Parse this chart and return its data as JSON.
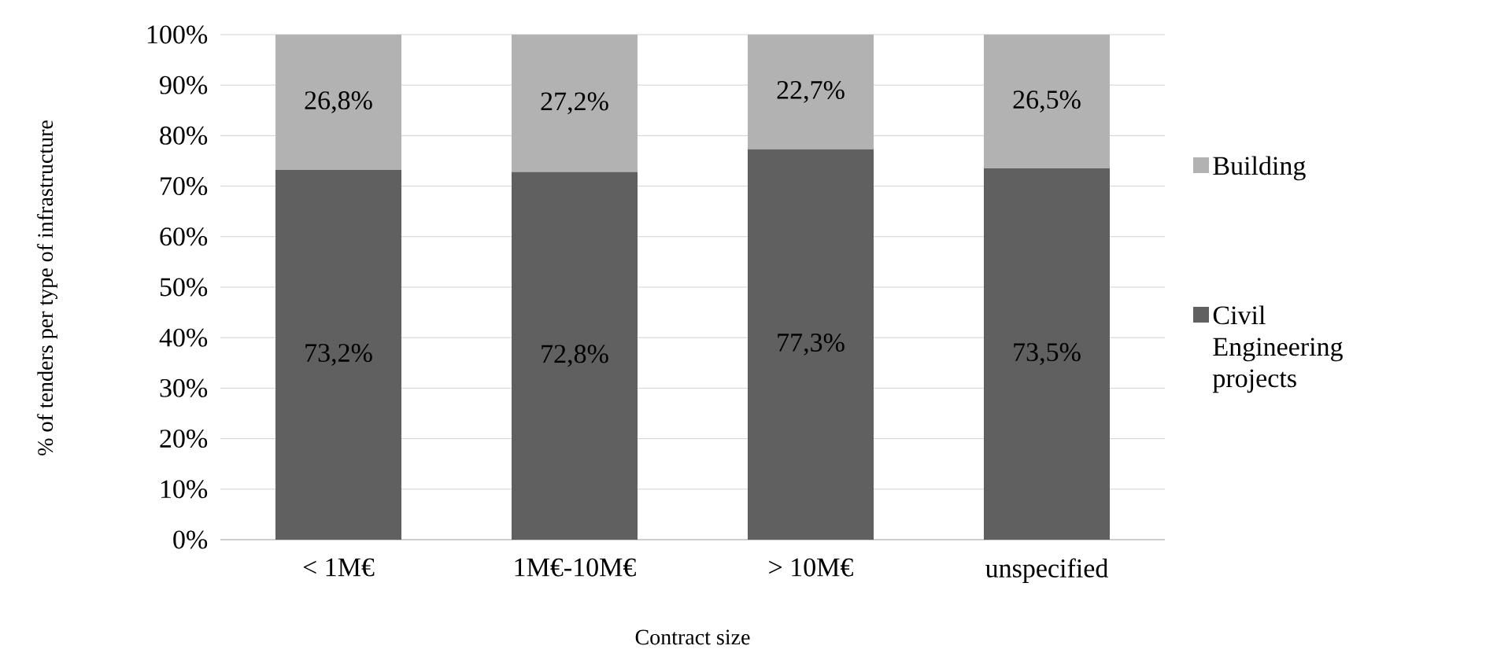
{
  "chart_data": {
    "type": "bar",
    "stacked": true,
    "xlabel": "Contract size",
    "ylabel": "% of tenders per type of infrastructure",
    "categories": [
      "< 1M€",
      "1M€-10M€",
      "> 10M€",
      "unspecified"
    ],
    "series": [
      {
        "name": "Civil Engineering projects",
        "color": "#606060",
        "values": [
          73.2,
          72.8,
          77.3,
          73.5
        ],
        "value_labels": [
          "73,2%",
          "72,8%",
          "77,3%",
          "73,5%"
        ]
      },
      {
        "name": "Building",
        "color": "#b2b2b2",
        "values": [
          26.8,
          27.2,
          22.7,
          26.5
        ],
        "value_labels": [
          "26,8%",
          "27,2%",
          "22,7%",
          "26,5%"
        ]
      }
    ],
    "ylim": [
      0,
      100
    ],
    "yticks": [
      {
        "value": 0,
        "label": "0%"
      },
      {
        "value": 10,
        "label": "10%"
      },
      {
        "value": 20,
        "label": "20%"
      },
      {
        "value": 30,
        "label": "30%"
      },
      {
        "value": 40,
        "label": "40%"
      },
      {
        "value": 50,
        "label": "50%"
      },
      {
        "value": 60,
        "label": "60%"
      },
      {
        "value": 70,
        "label": "70%"
      },
      {
        "value": 80,
        "label": "80%"
      },
      {
        "value": 90,
        "label": "90%"
      },
      {
        "value": 100,
        "label": "100%"
      }
    ],
    "grid": "y",
    "legend": "right"
  }
}
